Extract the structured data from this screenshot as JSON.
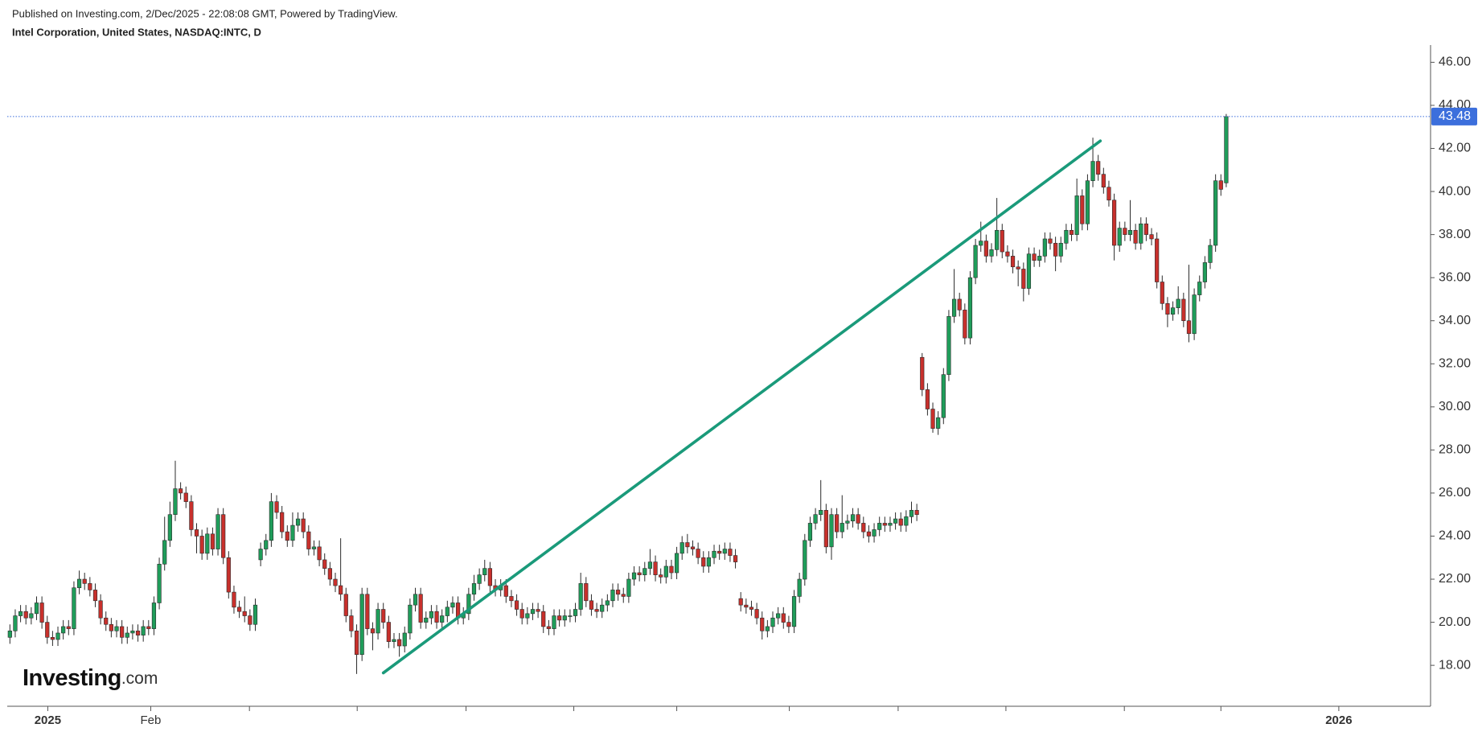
{
  "chart_data": {
    "type": "candlestick",
    "caption": "Published on Investing.com, 2/Dec/2025 - 22:08:08 GMT, Powered by TradingView.",
    "title": "Intel Corporation, United States, NASDAQ:INTC, D",
    "logo": {
      "main": "Investing",
      "suffix": ".com"
    },
    "up_color": "#1f9d5a",
    "down_color": "#c8302c",
    "wick_color": "#2b2b2b",
    "open": [
      19.3,
      19.6,
      20.3,
      20.5,
      20.2,
      20.4,
      20.9,
      20.0,
      19.3,
      19.2,
      19.5,
      19.8,
      19.7,
      21.6,
      22.0,
      21.8,
      21.5,
      21.0,
      20.2,
      19.9,
      19.6,
      19.8,
      19.3,
      19.5,
      19.6,
      19.4,
      19.8,
      19.7,
      20.9,
      22.7,
      23.8,
      25.0,
      26.2,
      26.0,
      25.6,
      24.3,
      24.0,
      23.2,
      24.1,
      23.4,
      25.0,
      23.0,
      21.4,
      20.7,
      20.5,
      20.3,
      19.9,
      22.9,
      23.4,
      23.8,
      25.6,
      25.1,
      24.2,
      23.8,
      24.5,
      24.8,
      24.2,
      23.4,
      23.5,
      22.9,
      22.5,
      22.0,
      21.7,
      21.3,
      20.3,
      19.6,
      18.5,
      21.3,
      19.7,
      19.5,
      20.6,
      20.0,
      19.1,
      19.2,
      18.9,
      19.5,
      20.8,
      21.3,
      20.0,
      20.2,
      20.5,
      20.0,
      20.3,
      20.7,
      20.9,
      20.2,
      20.4,
      21.3,
      21.8,
      22.2,
      22.5,
      21.7,
      21.5,
      21.7,
      21.2,
      21.0,
      20.6,
      20.2,
      20.4,
      20.6,
      20.5,
      19.8,
      19.7,
      20.3,
      20.1,
      20.3,
      20.3,
      20.6,
      21.8,
      21.0,
      20.6,
      20.5,
      20.8,
      21.0,
      21.5,
      21.3,
      21.2,
      22.0,
      22.3,
      22.2,
      22.5,
      22.8,
      22.2,
      22.1,
      22.6,
      22.3,
      23.2,
      23.7,
      23.5,
      23.4,
      23.0,
      22.6,
      23.0,
      23.3,
      23.2,
      23.4,
      23.1,
      21.1,
      20.8,
      20.7,
      20.6,
      20.2,
      19.6,
      19.8,
      20.2,
      20.4,
      20.0,
      19.8,
      21.2,
      22.0,
      23.8,
      24.6,
      25.0,
      25.2,
      23.5,
      25.0,
      24.2,
      24.6,
      24.7,
      25.0,
      24.6,
      24.2,
      24.0,
      24.3,
      24.6,
      24.5,
      24.6,
      24.8,
      24.5,
      24.9,
      25.2,
      32.3,
      30.8,
      29.9,
      29.0,
      29.5,
      31.5,
      34.2,
      35.0,
      34.5,
      33.2,
      36.0,
      37.5,
      37.7,
      37.0,
      37.3,
      38.2,
      37.2,
      37.0,
      36.5,
      36.4,
      35.5,
      37.1,
      36.8,
      37.0,
      37.8,
      37.6,
      37.0,
      37.6,
      38.2,
      38.0,
      39.8,
      38.5,
      40.5,
      41.4,
      40.8,
      40.2,
      39.6,
      37.5,
      38.3,
      38.0,
      38.2,
      37.6,
      38.5,
      38.0,
      37.8,
      35.8,
      34.8,
      34.3,
      34.6,
      35.0,
      34.0,
      33.4,
      35.2,
      35.8,
      36.7,
      37.5,
      40.5,
      40.4
    ],
    "high": [
      19.9,
      20.6,
      20.8,
      20.8,
      20.7,
      21.2,
      21.2,
      20.3,
      19.6,
      19.8,
      20.1,
      20.1,
      21.9,
      22.4,
      22.3,
      22.1,
      21.8,
      21.3,
      20.5,
      20.2,
      20.1,
      20.1,
      19.8,
      19.9,
      19.9,
      20.1,
      20.1,
      21.2,
      23.0,
      24.9,
      25.6,
      27.5,
      26.5,
      26.3,
      25.9,
      24.6,
      24.3,
      24.4,
      24.4,
      25.3,
      25.3,
      23.3,
      21.7,
      21.0,
      21.2,
      20.6,
      21.1,
      23.7,
      24.1,
      26.0,
      25.9,
      25.4,
      24.5,
      25.1,
      25.1,
      25.1,
      24.5,
      23.8,
      23.8,
      23.2,
      22.8,
      22.3,
      23.9,
      21.6,
      20.6,
      19.9,
      21.6,
      21.6,
      20.0,
      20.9,
      20.9,
      20.3,
      19.5,
      19.5,
      19.8,
      21.1,
      21.6,
      21.6,
      20.5,
      20.8,
      20.8,
      20.6,
      21.0,
      21.2,
      21.2,
      20.7,
      21.6,
      22.2,
      22.5,
      22.9,
      22.8,
      22.0,
      22.0,
      22.0,
      21.5,
      21.3,
      20.9,
      20.7,
      20.9,
      20.9,
      20.8,
      20.1,
      20.6,
      20.6,
      20.6,
      20.6,
      20.9,
      22.3,
      22.1,
      21.3,
      20.9,
      21.1,
      21.3,
      21.8,
      21.8,
      21.6,
      22.3,
      22.6,
      22.6,
      22.8,
      23.4,
      23.1,
      22.5,
      22.9,
      22.9,
      23.5,
      24.0,
      24.1,
      23.8,
      23.7,
      23.3,
      23.3,
      23.6,
      23.6,
      23.7,
      23.7,
      23.4,
      21.4,
      21.1,
      21.0,
      20.9,
      20.5,
      20.1,
      20.5,
      20.7,
      20.7,
      20.3,
      21.5,
      22.3,
      24.1,
      24.9,
      25.3,
      26.6,
      25.5,
      25.3,
      25.3,
      25.9,
      25.0,
      25.3,
      25.3,
      24.9,
      24.5,
      24.6,
      24.9,
      24.9,
      24.9,
      25.1,
      25.1,
      25.2,
      25.6,
      25.5,
      32.5,
      31.1,
      30.2,
      29.8,
      31.8,
      34.5,
      36.4,
      35.3,
      34.8,
      36.3,
      37.8,
      38.6,
      38.0,
      37.6,
      39.7,
      38.5,
      37.5,
      37.3,
      36.8,
      36.7,
      37.4,
      37.4,
      37.3,
      38.1,
      38.1,
      37.9,
      37.9,
      38.5,
      38.5,
      40.6,
      40.1,
      40.8,
      42.5,
      41.7,
      41.1,
      40.5,
      39.9,
      38.6,
      38.6,
      39.6,
      38.5,
      38.8,
      38.8,
      38.3,
      38.1,
      36.1,
      35.1,
      34.9,
      35.6,
      35.3,
      36.6,
      35.5,
      36.1,
      37.0,
      37.8,
      40.8,
      40.8,
      43.6
    ],
    "low": [
      19.0,
      19.3,
      20.0,
      19.9,
      19.9,
      20.1,
      19.7,
      19.0,
      18.9,
      18.9,
      19.2,
      19.4,
      19.4,
      21.3,
      21.5,
      21.2,
      20.7,
      19.9,
      19.6,
      19.3,
      19.3,
      19.0,
      19.0,
      19.2,
      19.1,
      19.1,
      19.4,
      19.4,
      20.6,
      22.4,
      23.5,
      24.7,
      25.7,
      25.3,
      24.0,
      23.2,
      22.9,
      22.9,
      23.1,
      23.1,
      22.7,
      21.1,
      20.4,
      20.2,
      20.0,
      19.6,
      19.6,
      22.6,
      23.1,
      23.5,
      24.8,
      23.9,
      23.5,
      23.5,
      24.2,
      23.9,
      23.1,
      23.1,
      22.6,
      22.2,
      21.7,
      21.4,
      21.0,
      20.0,
      19.3,
      17.6,
      18.2,
      19.4,
      18.7,
      19.2,
      19.7,
      18.8,
      18.8,
      18.4,
      18.6,
      19.2,
      20.5,
      19.7,
      19.7,
      19.9,
      19.7,
      19.7,
      20.0,
      20.4,
      19.9,
      19.9,
      20.1,
      21.0,
      21.5,
      21.9,
      21.4,
      21.2,
      21.2,
      20.9,
      20.7,
      20.3,
      19.9,
      19.9,
      20.1,
      20.2,
      19.5,
      19.4,
      19.4,
      19.8,
      19.8,
      20.0,
      20.0,
      20.3,
      20.7,
      20.3,
      20.2,
      20.2,
      20.5,
      20.7,
      21.0,
      20.9,
      20.9,
      21.7,
      21.9,
      21.9,
      22.2,
      21.9,
      21.8,
      21.8,
      22.0,
      22.0,
      22.9,
      23.2,
      23.1,
      22.7,
      22.3,
      22.3,
      22.7,
      22.9,
      22.9,
      22.8,
      22.5,
      20.5,
      20.4,
      20.3,
      19.9,
      19.2,
      19.3,
      19.5,
      19.9,
      19.7,
      19.5,
      19.5,
      20.9,
      21.7,
      23.5,
      24.3,
      24.7,
      23.2,
      22.9,
      23.9,
      23.9,
      24.3,
      24.4,
      24.3,
      23.9,
      23.7,
      23.7,
      24.0,
      24.2,
      24.2,
      24.3,
      24.2,
      24.2,
      24.6,
      24.7,
      30.5,
      29.6,
      28.8,
      28.7,
      29.2,
      31.2,
      33.9,
      34.2,
      32.9,
      32.9,
      35.7,
      37.2,
      36.7,
      36.7,
      37.0,
      36.9,
      36.7,
      36.2,
      35.6,
      34.9,
      35.2,
      36.5,
      36.5,
      36.7,
      37.3,
      36.3,
      36.7,
      37.3,
      37.7,
      37.7,
      38.2,
      38.2,
      40.2,
      40.5,
      39.9,
      39.3,
      36.8,
      37.2,
      37.7,
      37.7,
      37.3,
      37.3,
      37.7,
      37.5,
      35.5,
      34.5,
      33.7,
      34.0,
      34.3,
      33.7,
      33.0,
      33.1,
      34.9,
      35.5,
      36.4,
      37.2,
      39.8,
      40.2
    ],
    "close": [
      19.6,
      20.3,
      20.5,
      20.2,
      20.4,
      20.9,
      20.0,
      19.3,
      19.2,
      19.5,
      19.8,
      19.7,
      21.6,
      22.0,
      21.8,
      21.5,
      21.0,
      20.2,
      19.9,
      19.6,
      19.8,
      19.3,
      19.5,
      19.6,
      19.4,
      19.8,
      19.7,
      20.9,
      22.7,
      23.8,
      25.0,
      26.2,
      26.0,
      25.6,
      24.3,
      24.0,
      23.2,
      24.1,
      23.4,
      25.0,
      23.0,
      21.4,
      20.7,
      20.5,
      20.3,
      19.9,
      20.8,
      23.4,
      23.8,
      25.6,
      25.1,
      24.2,
      23.8,
      24.5,
      24.8,
      24.2,
      23.4,
      23.5,
      22.9,
      22.5,
      22.0,
      21.7,
      21.3,
      20.3,
      19.6,
      18.5,
      21.3,
      19.7,
      19.5,
      20.6,
      20.0,
      19.1,
      19.2,
      18.9,
      19.5,
      20.8,
      21.3,
      20.0,
      20.2,
      20.5,
      20.0,
      20.3,
      20.7,
      20.9,
      20.2,
      20.4,
      21.3,
      21.8,
      22.2,
      22.5,
      21.7,
      21.5,
      21.7,
      21.2,
      21.0,
      20.6,
      20.2,
      20.4,
      20.6,
      20.5,
      19.8,
      19.7,
      20.3,
      20.1,
      20.3,
      20.3,
      20.6,
      21.8,
      21.0,
      20.6,
      20.5,
      20.8,
      21.0,
      21.5,
      21.3,
      21.2,
      22.0,
      22.3,
      22.2,
      22.5,
      22.8,
      22.2,
      22.1,
      22.6,
      22.3,
      23.2,
      23.7,
      23.5,
      23.4,
      23.0,
      22.6,
      23.0,
      23.3,
      23.2,
      23.4,
      23.1,
      22.8,
      20.8,
      20.7,
      20.6,
      20.2,
      19.6,
      19.8,
      20.2,
      20.4,
      20.0,
      19.8,
      21.2,
      22.0,
      23.8,
      24.6,
      25.0,
      25.2,
      23.5,
      25.0,
      24.2,
      24.6,
      24.7,
      25.0,
      24.6,
      24.2,
      24.0,
      24.3,
      24.6,
      24.5,
      24.6,
      24.8,
      24.5,
      24.9,
      25.2,
      25.0,
      30.8,
      29.9,
      29.0,
      29.5,
      31.5,
      34.2,
      35.0,
      34.5,
      33.2,
      36.0,
      37.5,
      37.7,
      37.0,
      37.3,
      38.2,
      37.2,
      37.0,
      36.5,
      36.4,
      35.5,
      37.1,
      36.8,
      37.0,
      37.8,
      37.6,
      37.0,
      37.6,
      38.2,
      38.0,
      39.8,
      38.5,
      40.5,
      41.4,
      40.8,
      40.2,
      39.6,
      37.5,
      38.3,
      38.0,
      38.2,
      37.6,
      38.5,
      38.0,
      37.8,
      35.8,
      34.8,
      34.3,
      34.6,
      35.0,
      34.0,
      33.4,
      35.2,
      35.8,
      36.7,
      37.5,
      40.5,
      40.1,
      43.48
    ],
    "xlim": [
      -0.5,
      266.3
    ],
    "xticks": [
      {
        "value": 7.1,
        "label": "2025"
      },
      {
        "value": 26.4,
        "label": "Feb"
      },
      {
        "value": 44.9,
        "label": null
      },
      {
        "value": 65.1,
        "label": null
      },
      {
        "value": 85.5,
        "label": null
      },
      {
        "value": 105.7,
        "label": null
      },
      {
        "value": 125.0,
        "label": null
      },
      {
        "value": 146.1,
        "label": null
      },
      {
        "value": 166.5,
        "label": null
      },
      {
        "value": 186.7,
        "label": null
      },
      {
        "value": 208.9,
        "label": null
      },
      {
        "value": 227.0,
        "label": null
      },
      {
        "value": 249.1,
        "label": "2026"
      }
    ],
    "ylim": [
      16.1,
      46.8
    ],
    "yticks": [
      {
        "value": 18,
        "label": "18.00"
      },
      {
        "value": 20,
        "label": "20.00"
      },
      {
        "value": 22,
        "label": "22.00"
      },
      {
        "value": 24,
        "label": "24.00"
      },
      {
        "value": 26,
        "label": "26.00"
      },
      {
        "value": 28,
        "label": "28.00"
      },
      {
        "value": 30,
        "label": "30.00"
      },
      {
        "value": 32,
        "label": "32.00"
      },
      {
        "value": 34,
        "label": "34.00"
      },
      {
        "value": 36,
        "label": "36.00"
      },
      {
        "value": 38,
        "label": "38.00"
      },
      {
        "value": 40,
        "label": "40.00"
      },
      {
        "value": 42,
        "label": "42.00"
      },
      {
        "value": 44,
        "label": "44.00"
      },
      {
        "value": 46,
        "label": "46.00"
      }
    ],
    "last_price": 43.48,
    "last_price_color": "#3c6fdc",
    "trendline": {
      "x": [
        70,
        204.4
      ],
      "y": [
        17.65,
        42.35
      ],
      "color": "#1a9a7a"
    }
  }
}
